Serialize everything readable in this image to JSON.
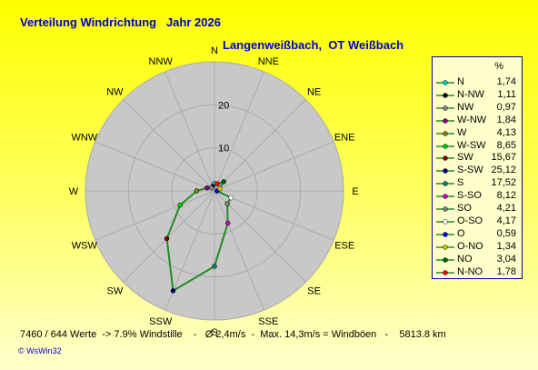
{
  "title": "Verteilung Windrichtung   Jahr 2026",
  "subtitle": "Langenweißbach,  OT Weißbach",
  "footer": "7460 / 644 Werte  -> 7.9% Windstille    -   Ø 2,4m/s  -  Max. 14,3m/s = Windböen   -    5813.8 km",
  "credit": "© WsWin32",
  "legend_unit": "%",
  "chart_data": {
    "type": "polar-line",
    "direction_labels": [
      "N",
      "NNE",
      "NE",
      "ENE",
      "E",
      "ESE",
      "SE",
      "SSE",
      "S",
      "SSW",
      "SW",
      "WSW",
      "W",
      "WNW",
      "NW",
      "NNW"
    ],
    "rlim": [
      0,
      30
    ],
    "r_tick_labels": [
      "10",
      "20"
    ],
    "grid": true,
    "legend_placement": "right",
    "line_color": "#228b22",
    "series": [
      {
        "name": "N",
        "value": 1.74,
        "marker_color": "#00cccc"
      },
      {
        "name": "N-NW",
        "value": 1.11,
        "marker_color": "#000000"
      },
      {
        "name": "NW",
        "value": 0.97,
        "marker_color": "#888888"
      },
      {
        "name": "W-NW",
        "value": 1.84,
        "marker_color": "#800080"
      },
      {
        "name": "W",
        "value": 4.13,
        "marker_color": "#808000"
      },
      {
        "name": "W-SW",
        "value": 8.65,
        "marker_color": "#00cc00"
      },
      {
        "name": "SW",
        "value": 15.67,
        "marker_color": "#800000"
      },
      {
        "name": "S-SW",
        "value": 25.12,
        "marker_color": "#000080"
      },
      {
        "name": "S",
        "value": 17.52,
        "marker_color": "#008080"
      },
      {
        "name": "S-SO",
        "value": 8.12,
        "marker_color": "#cc00cc"
      },
      {
        "name": "SO",
        "value": 4.21,
        "marker_color": "#808080"
      },
      {
        "name": "O-SO",
        "value": 4.17,
        "marker_color": "#ffffff"
      },
      {
        "name": "O",
        "value": 0.59,
        "marker_color": "#0000ff"
      },
      {
        "name": "O-NO",
        "value": 1.34,
        "marker_color": "#cccc00"
      },
      {
        "name": "NO",
        "value": 3.04,
        "marker_color": "#006600"
      },
      {
        "name": "N-NO",
        "value": 1.78,
        "marker_color": "#ff0000"
      }
    ]
  }
}
